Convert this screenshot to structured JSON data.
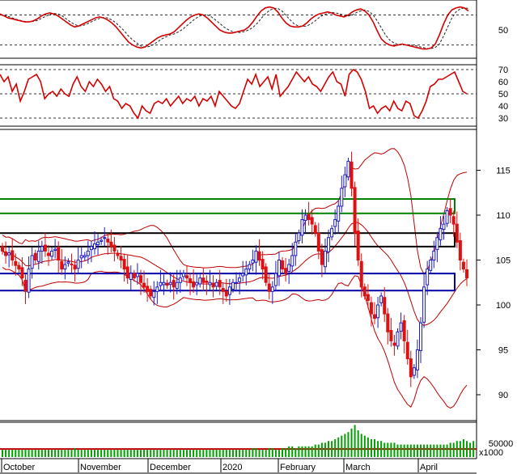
{
  "chart_data": [
    {
      "type": "line",
      "panel": "stochastic",
      "y_ticks": [
        50
      ],
      "reference_levels": [
        20,
        80
      ],
      "series": [
        {
          "color": "#d40000",
          "values": [
            82,
            78,
            74,
            72,
            70,
            68,
            66,
            66,
            68,
            72,
            78,
            82,
            84,
            82,
            78,
            72,
            66,
            60,
            56,
            58,
            62,
            66,
            70,
            74,
            76,
            74,
            70,
            64,
            56,
            46,
            36,
            26,
            20,
            16,
            14,
            16,
            22,
            28,
            34,
            38,
            40,
            42,
            46,
            54,
            62,
            70,
            76,
            80,
            82,
            80,
            74,
            66,
            58,
            50,
            46,
            44,
            44,
            46,
            48,
            50,
            56,
            66,
            78,
            88,
            94,
            96,
            94,
            86,
            74,
            64,
            58,
            56,
            56,
            58,
            64,
            72,
            78,
            82,
            84,
            86,
            84,
            80,
            78,
            76,
            80,
            86,
            90,
            92,
            88,
            80,
            66,
            48,
            32,
            24,
            20,
            18,
            20,
            22,
            20,
            18,
            16,
            14,
            12,
            12,
            14,
            22,
            40,
            62,
            80,
            90,
            94,
            96,
            94,
            88
          ]
        },
        {
          "color": "#333333",
          "style": "dashed",
          "values": [
            80,
            79,
            77,
            74,
            71,
            69,
            67,
            66,
            67,
            69,
            73,
            77,
            81,
            83,
            82,
            78,
            72,
            66,
            61,
            58,
            59,
            62,
            66,
            70,
            73,
            75,
            74,
            70,
            64,
            56,
            48,
            38,
            30,
            24,
            18,
            16,
            17,
            21,
            26,
            32,
            36,
            40,
            42,
            46,
            51,
            58,
            65,
            72,
            77,
            80,
            80,
            76,
            70,
            63,
            56,
            51,
            47,
            45,
            45,
            47,
            50,
            55,
            63,
            73,
            82,
            89,
            93,
            93,
            88,
            79,
            70,
            62,
            58,
            57,
            58,
            62,
            68,
            75,
            80,
            83,
            85,
            84,
            82,
            79,
            78,
            80,
            85,
            88,
            90,
            87,
            80,
            68,
            54,
            40,
            30,
            24,
            21,
            20,
            21,
            20,
            19,
            17,
            15,
            13,
            13,
            15,
            22,
            38,
            56,
            74,
            86,
            92,
            94,
            93
          ]
        }
      ]
    },
    {
      "type": "line",
      "panel": "rsi",
      "y_ticks": [
        70,
        60,
        50,
        40,
        30
      ],
      "reference_levels": [
        30,
        50,
        70
      ],
      "series": [
        {
          "color": "#d40000",
          "values": [
            66,
            60,
            64,
            52,
            58,
            44,
            52,
            62,
            64,
            66,
            60,
            46,
            50,
            52,
            48,
            54,
            50,
            48,
            58,
            64,
            56,
            52,
            60,
            56,
            62,
            58,
            52,
            56,
            46,
            44,
            38,
            42,
            40,
            34,
            30,
            40,
            36,
            34,
            42,
            44,
            42,
            46,
            40,
            44,
            48,
            42,
            46,
            44,
            48,
            40,
            46,
            44,
            48,
            40,
            52,
            48,
            44,
            40,
            38,
            42,
            52,
            62,
            58,
            66,
            56,
            60,
            64,
            54,
            66,
            48,
            52,
            56,
            62,
            68,
            64,
            60,
            64,
            58,
            56,
            52,
            58,
            64,
            68,
            60,
            58,
            48,
            66,
            70,
            68,
            62,
            52,
            38,
            40,
            34,
            38,
            40,
            36,
            44,
            38,
            36,
            44,
            42,
            32,
            30,
            36,
            44,
            56,
            58,
            62,
            62,
            64,
            66,
            68,
            60,
            52,
            50
          ]
        }
      ]
    },
    {
      "type": "candlestick",
      "panel": "price",
      "y_ticks": [
        90,
        95,
        100,
        105,
        110,
        115
      ],
      "ylim": [
        87.2,
        119.2
      ],
      "x_tick_labels": [
        "October",
        "November",
        "December",
        "2020",
        "February",
        "March",
        "April"
      ],
      "colors": {
        "up": "#1c1cc8",
        "down": "#e01010",
        "bollinger": "#c00000",
        "blue_box": "#0000a8",
        "black_box": "#000000",
        "green_box": "#008000"
      },
      "zones": [
        {
          "kind": "green_box",
          "y1": 110.2,
          "y2": 111.8
        },
        {
          "kind": "black_box",
          "y1": 106.5,
          "y2": 108.0
        },
        {
          "kind": "blue_box",
          "y1": 101.6,
          "y2": 103.5
        }
      ],
      "closes": [
        106.0,
        105.5,
        105.8,
        105.0,
        104.4,
        104.0,
        103.0,
        101.5,
        104.0,
        105.5,
        105.0,
        106.0,
        106.5,
        106.0,
        105.5,
        106.0,
        106.2,
        105.0,
        104.0,
        104.5,
        104.8,
        104.5,
        104.0,
        105.0,
        105.5,
        105.5,
        106.0,
        106.5,
        106.8,
        107.0,
        107.2,
        107.5,
        107.0,
        106.5,
        106.0,
        105.5,
        105.0,
        104.0,
        103.0,
        103.5,
        103.0,
        103.5,
        102.5,
        102.0,
        101.5,
        101.0,
        101.5,
        102.0,
        102.5,
        102.5,
        102.2,
        102.5,
        102.0,
        102.5,
        103.0,
        103.5,
        103.0,
        102.5,
        102.0,
        102.5,
        103.0,
        102.5,
        102.5,
        102.5,
        102.0,
        102.5,
        102.0,
        101.5,
        101.0,
        102.0,
        102.5,
        102.5,
        103.0,
        103.5,
        104.0,
        104.5,
        105.0,
        106.0,
        105.0,
        104.0,
        102.5,
        101.5,
        102.0,
        103.5,
        105.0,
        104.0,
        103.5,
        104.5,
        105.5,
        107.0,
        108.0,
        109.5,
        110.0,
        109.5,
        109.0,
        108.0,
        106.0,
        104.5,
        106.0,
        107.5,
        108.5,
        109.5,
        111.0,
        113.0,
        114.5,
        116.0,
        113.0,
        108.0,
        105.0,
        102.0,
        101.0,
        100.5,
        99.0,
        98.5,
        100.0,
        101.0,
        99.0,
        97.0,
        96.0,
        95.5,
        97.0,
        98.0,
        96.0,
        94.0,
        92.0,
        93.0,
        95.0,
        98.0,
        102.0,
        104.0,
        105.0,
        106.0,
        107.5,
        108.5,
        109.0,
        110.5,
        110.0,
        109.0,
        107.0,
        105.0,
        104.0,
        103.0
      ],
      "volume_ticks": [
        "50000",
        "x1000"
      ],
      "volume": [
        4,
        4,
        4,
        4,
        4,
        4,
        4,
        4,
        4,
        4,
        4,
        4,
        4,
        4,
        4,
        4,
        4,
        4,
        4,
        4,
        4,
        4,
        5,
        4,
        4,
        4,
        4,
        4,
        4,
        4,
        4,
        4,
        4,
        4,
        4,
        4,
        4,
        4,
        4,
        4,
        4,
        4,
        4,
        4,
        4,
        4,
        4,
        4,
        4,
        4,
        4,
        4,
        4,
        4,
        4,
        4,
        4,
        4,
        4,
        4,
        4,
        4,
        4,
        4,
        4,
        4,
        4,
        4,
        4,
        4,
        4,
        4,
        4,
        4,
        4,
        4,
        5,
        5,
        4,
        4,
        4,
        5,
        5,
        4,
        4,
        5,
        5,
        6,
        6,
        5,
        6,
        6,
        6,
        6,
        6,
        7,
        7,
        8,
        8,
        9,
        9,
        10,
        11,
        12,
        13,
        14,
        16,
        18,
        15,
        13,
        12,
        11,
        10,
        10,
        9,
        9,
        8,
        8,
        8,
        8,
        7,
        7,
        7,
        7,
        7,
        7,
        7,
        7,
        7,
        7,
        7,
        7,
        7,
        7,
        7,
        7,
        8,
        8,
        9,
        9,
        10,
        9,
        8,
        9
      ]
    }
  ]
}
